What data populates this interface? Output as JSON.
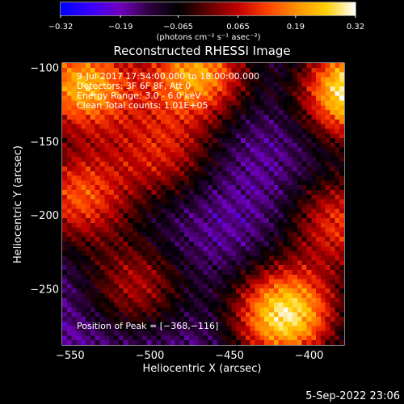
{
  "chart_data": {
    "type": "heatmap",
    "title": "Reconstructed RHESSI Image",
    "xlabel": "Heliocentric X (arcsec)",
    "ylabel": "Heliocentric Y (arcsec)",
    "xlim": [
      -555,
      -378
    ],
    "ylim": [
      -288,
      -97
    ],
    "xticks": [
      -550,
      -500,
      -450,
      -400
    ],
    "yticks": [
      -100,
      -150,
      -200,
      -250
    ],
    "x_tick_labels": [
      "−550",
      "−500",
      "−450",
      "−400"
    ],
    "y_tick_labels": [
      "−100",
      "−150",
      "−200",
      "−250"
    ],
    "colorbar": {
      "range": [
        -0.32,
        0.32
      ],
      "ticks": [
        -0.32,
        -0.19,
        -0.065,
        0.065,
        0.19,
        0.32
      ],
      "tick_labels": [
        "−0.32",
        "−0.19",
        "−0.065",
        "0.065",
        "0.19",
        "0.32"
      ],
      "label": "(photons cm⁻² s⁻¹ asec⁻²)",
      "colormap": [
        "#0000ff",
        "#3a00ff",
        "#7000c0",
        "#300040",
        "#000000",
        "#600000",
        "#c00000",
        "#ff4000",
        "#ff9000",
        "#ffd000",
        "#ffffff"
      ]
    },
    "annotations": [
      "9-Jul-2017 17:54:00.000 to 18:00:00.000",
      "Detectors: 3F 6F 8F, Att 0",
      "Energy Range: 3.0 - 6.0 keV",
      "Clean     Total counts: 1.01E+05",
      "Position of Peak = [−368,−116]"
    ],
    "peak_position": [
      -368,
      -116
    ],
    "sources": [
      {
        "x": -372,
        "y": -116,
        "intensity": 0.32
      },
      {
        "x": -415,
        "y": -268,
        "intensity": 0.29
      },
      {
        "x": -542,
        "y": -112,
        "intensity": 0.22
      },
      {
        "x": -470,
        "y": -103,
        "intensity": 0.2
      },
      {
        "x": -545,
        "y": -188,
        "intensity": 0.12
      },
      {
        "x": -380,
        "y": -205,
        "intensity": 0.1
      },
      {
        "x": -492,
        "y": -158,
        "intensity": 0.05
      },
      {
        "x": -508,
        "y": -248,
        "intensity": 0.04
      }
    ]
  },
  "timestamp": "5-Sep-2022 23:06"
}
